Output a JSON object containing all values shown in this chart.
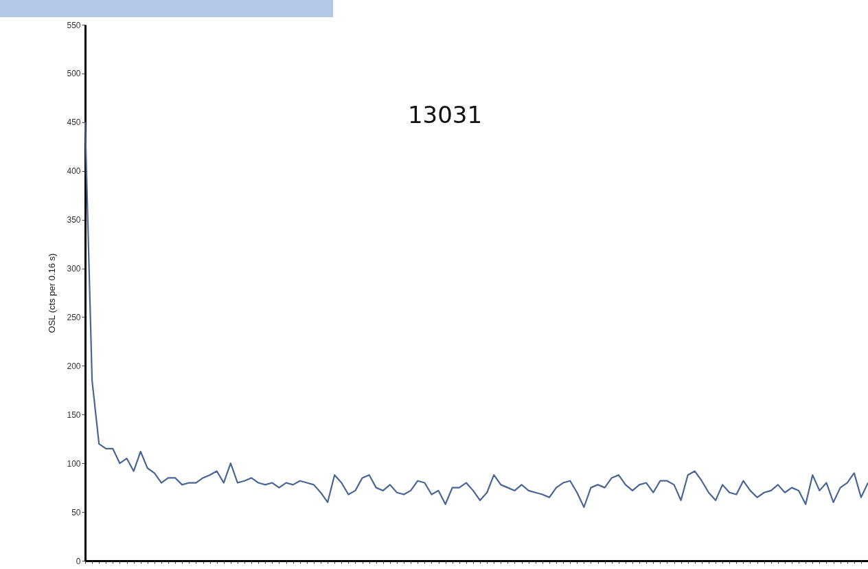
{
  "chart_data": {
    "type": "line",
    "title": "13031",
    "ylabel": "OSL (cts per 0.16 s)",
    "categories": [
      null,
      null,
      null,
      null,
      null,
      null,
      null,
      null,
      null,
      null,
      null,
      null,
      null,
      null,
      null,
      null,
      null,
      null,
      null,
      null,
      null,
      null,
      null,
      null,
      null,
      null,
      null,
      null,
      null,
      null,
      null,
      null,
      null,
      null,
      null,
      null,
      null,
      null,
      null,
      null,
      null,
      null,
      null,
      null,
      null,
      null,
      null,
      null,
      null,
      null,
      null,
      null,
      null,
      null,
      null,
      null,
      null,
      null,
      null,
      null,
      null,
      null,
      null,
      null,
      null,
      null,
      null,
      null,
      null,
      null,
      null,
      null,
      null,
      null,
      null,
      null,
      null,
      null,
      null,
      null,
      null,
      null,
      null,
      null,
      null,
      null,
      null,
      null,
      null,
      null,
      null,
      null,
      null,
      null,
      null,
      null,
      null,
      null,
      null,
      null,
      null,
      null,
      null,
      null,
      null,
      null,
      null,
      null,
      null,
      null,
      null,
      null,
      null,
      null
    ],
    "series": [
      {
        "color": "#4a6494",
        "values": [
          450,
          185,
          120,
          115,
          115,
          100,
          105,
          92,
          112,
          95,
          90,
          80,
          85,
          85,
          78,
          80,
          80,
          85,
          88,
          92,
          80,
          100,
          80,
          82,
          85,
          80,
          78,
          80,
          75,
          80,
          78,
          82,
          80,
          78,
          70,
          60,
          88,
          80,
          68,
          72,
          85,
          88,
          75,
          72,
          78,
          70,
          68,
          72,
          82,
          80,
          68,
          72,
          58,
          75,
          75,
          80,
          72,
          62,
          70,
          88,
          78,
          75,
          72,
          78,
          72,
          70,
          68,
          65,
          75,
          80,
          82,
          70,
          55,
          75,
          78,
          75,
          85,
          88,
          78,
          72,
          78,
          80,
          70,
          82,
          82,
          78,
          62,
          88,
          92,
          82,
          70,
          62,
          78,
          70,
          68,
          82,
          72,
          65,
          70,
          72,
          78,
          70,
          75,
          72,
          58,
          88,
          72,
          80,
          60,
          75,
          80,
          90,
          65,
          80
        ]
      }
    ],
    "ylim": [
      0,
      550
    ],
    "yticks": [
      0,
      50,
      100,
      150,
      200,
      250,
      300,
      350,
      400,
      450,
      500,
      550
    ],
    "tick_labels": "y",
    "marker": "none",
    "line_style": "solid"
  }
}
